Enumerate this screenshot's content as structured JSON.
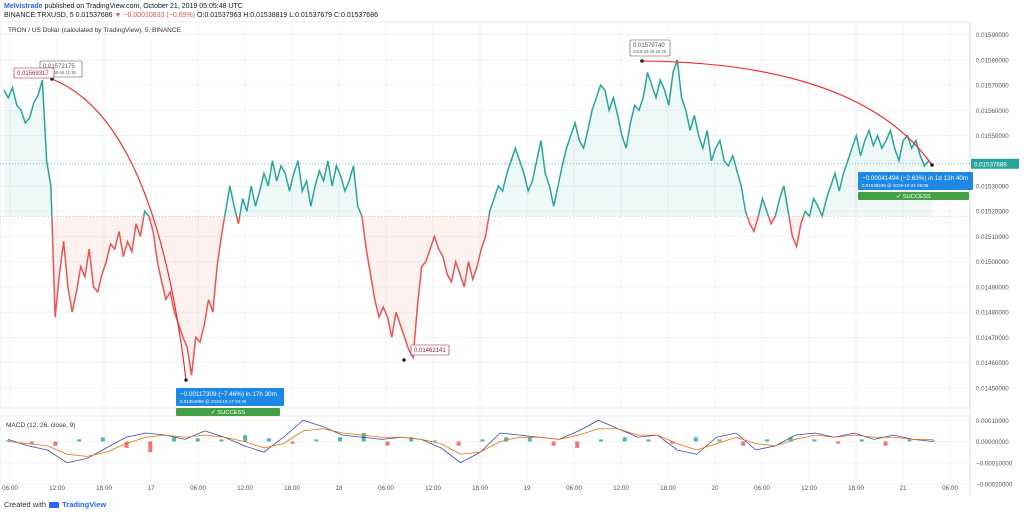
{
  "header": {
    "author": "Melvistrade",
    "published": "published on TradingView.com, October 21, 2019 05:05:48 UTC",
    "symbol_line_prefix": "BINANCE:TRXUSD, 5  0.01537686",
    "change": "−0.00010633 (−0.69%)",
    "ohlc": "O:0.01537963  H:0.01538819  L:0.01537679  C:0.01537686"
  },
  "footer": {
    "created_with": "Created with",
    "brand": "TradingView"
  },
  "colors": {
    "up": "#26a69a",
    "down": "#ef5350",
    "arc": "#ff1a1a",
    "callout": "#1e88e5",
    "success": "#43a047",
    "grid": "#eef0f3",
    "axis_text": "#555"
  },
  "chart_data": [
    {
      "type": "line",
      "title": "TRON / US Dollar (calculated by TradingView), 5, BINANCE",
      "ylim": [
        0.01442,
        0.01595
      ],
      "y_ticks": [
        "0.01590000",
        "0.01580000",
        "0.01570000",
        "0.01560000",
        "0.01550000",
        "0.01540000",
        "0.01530000",
        "0.01520000",
        "0.01510000",
        "0.01500000",
        "0.01490000",
        "0.01480000",
        "0.01470000",
        "0.01460000",
        "0.01450000"
      ],
      "x_ticks": [
        "06:00",
        "12:00",
        "18:00",
        "17",
        "06:00",
        "12:00",
        "18:00",
        "18",
        "06:00",
        "12:00",
        "18:00",
        "19",
        "06:00",
        "12:00",
        "18:00",
        "20",
        "06:00",
        "12:00",
        "18:00",
        "21",
        "06:00"
      ],
      "baseline": 0.01518,
      "reference": 0.015388,
      "series": [
        {
          "values": [
            0.01568,
            0.01565,
            0.01569,
            0.01562,
            0.0156,
            0.01555,
            0.01557,
            0.01563,
            0.01566,
            0.01572,
            0.0154,
            0.0153,
            0.01478,
            0.01495,
            0.01508,
            0.0149,
            0.0148,
            0.01488,
            0.01498,
            0.01494,
            0.01505,
            0.0149,
            0.01488,
            0.01495,
            0.015,
            0.01507,
            0.01505,
            0.01512,
            0.01502,
            0.01508,
            0.01504,
            0.01515,
            0.0151,
            0.0152,
            0.01518,
            0.01512,
            0.015,
            0.01492,
            0.01485,
            0.01488,
            0.0148,
            0.01475,
            0.0147,
            0.01466,
            0.01455,
            0.0147,
            0.01468,
            0.01475,
            0.01485,
            0.0148,
            0.01498,
            0.0151,
            0.0152,
            0.0153,
            0.01522,
            0.01515,
            0.01525,
            0.0152,
            0.0153,
            0.01522,
            0.01528,
            0.01535,
            0.0153,
            0.0154,
            0.01532,
            0.01538,
            0.01535,
            0.01528,
            0.01535,
            0.0154,
            0.01528,
            0.01532,
            0.01522,
            0.0153,
            0.01536,
            0.01532,
            0.0154,
            0.0153,
            0.01538,
            0.01534,
            0.01528,
            0.01532,
            0.01538,
            0.01522,
            0.01518,
            0.01505,
            0.01495,
            0.01485,
            0.01478,
            0.01482,
            0.01478,
            0.0147,
            0.0148,
            0.01475,
            0.0147,
            0.01465,
            0.01462,
            0.01482,
            0.01498,
            0.015,
            0.01505,
            0.0151,
            0.01505,
            0.01502,
            0.01495,
            0.01492,
            0.015,
            0.01495,
            0.0149,
            0.015,
            0.01493,
            0.01498,
            0.01505,
            0.0151,
            0.0152,
            0.01525,
            0.0153,
            0.01528,
            0.01535,
            0.0154,
            0.01545,
            0.0154,
            0.01535,
            0.01528,
            0.01532,
            0.0154,
            0.01548,
            0.01535,
            0.0153,
            0.01522,
            0.0153,
            0.01538,
            0.01545,
            0.0155,
            0.01555,
            0.01548,
            0.01545,
            0.01552,
            0.0156,
            0.01565,
            0.0157,
            0.01568,
            0.0156,
            0.01565,
            0.01558,
            0.0155,
            0.01545,
            0.01555,
            0.01562,
            0.0156,
            0.01565,
            0.01575,
            0.0157,
            0.01565,
            0.01572,
            0.01568,
            0.01562,
            0.01575,
            0.0158,
            0.01565,
            0.0156,
            0.01552,
            0.01558,
            0.0155,
            0.01545,
            0.01552,
            0.0154,
            0.01545,
            0.01548,
            0.0154,
            0.01538,
            0.01542,
            0.01536,
            0.0153,
            0.0152,
            0.01515,
            0.01512,
            0.01518,
            0.01525,
            0.0152,
            0.01515,
            0.01518,
            0.01525,
            0.0153,
            0.0152,
            0.0151,
            0.01506,
            0.01515,
            0.0152,
            0.01518,
            0.01525,
            0.01522,
            0.01518,
            0.01525,
            0.0153,
            0.01535,
            0.01528,
            0.01535,
            0.0154,
            0.01545,
            0.0155,
            0.01542,
            0.01548,
            0.01552,
            0.01546,
            0.0155,
            0.01545,
            0.01548,
            0.01552,
            0.01545,
            0.0154,
            0.01548,
            0.0155,
            0.01545,
            0.01548,
            0.01542,
            0.01538,
            0.0154,
            0.01538
          ]
        }
      ],
      "annotations": [
        {
          "label": "0.01569317"
        },
        {
          "label": "0.01572175"
        },
        {
          "label": "0.01579740"
        },
        {
          "label": "2019-10-19 15:25"
        },
        {
          "label": "0.01462141"
        }
      ],
      "measurements": [
        {
          "text": "−0.00117309 (−7.46%) in 17h 30m",
          "sub": "0.01454866 @ 2019-10-17  04:45",
          "badge": "✓ SUCCESS"
        },
        {
          "text": "−0.00041494 (−2.63%) in 1d 13h 40m",
          "sub": "0.01538246 @ 2019-10-21  05:05",
          "badge": "✓ SUCCESS"
        }
      ],
      "price_tag": "0.01537686"
    },
    {
      "type": "bar",
      "title": "MACD (12, 26, close, 9)",
      "ylim": [
        -0.0002,
        0.00012
      ],
      "y_ticks": [
        "0.00010000",
        "0.00000000",
        "−0.00010000",
        "−0.00020000"
      ],
      "series": [
        {
          "name": "histogram",
          "values": [
            5e-06,
            -1e-05,
            -2e-05,
            1e-05,
            2e-05,
            -3e-05,
            -5e-05,
            2e-05,
            1.5e-05,
            1e-05,
            3e-05,
            1.5e-05,
            -1e-05,
            1e-05,
            2e-05,
            4e-05,
            -2e-05,
            2e-05,
            5e-06,
            -2e-05,
            1e-05,
            2e-05,
            2e-05,
            -2e-05,
            -3e-05,
            1e-05,
            2e-05,
            1e-05,
            -1e-05,
            2e-05,
            1e-05,
            -2e-05,
            1e-05,
            2e-05,
            1e-05,
            -1e-05,
            1e-05,
            -2e-05,
            1e-05,
            5e-06
          ]
        },
        {
          "name": "macd",
          "values": [
            1e-05,
            -2e-05,
            -4e-05,
            -0.0001,
            -8e-05,
            -3e-05,
            2e-05,
            4e-05,
            3e-05,
            1e-05,
            5e-05,
            2e-05,
            -2e-05,
            -5e-05,
            2e-05,
            0.0001,
            7e-05,
            3e-05,
            2e-05,
            1e-05,
            2e-05,
            1e-05,
            -3e-05,
            -0.0001,
            -5e-05,
            4e-05,
            3e-05,
            2e-05,
            1e-05,
            5e-05,
            0.0001,
            6e-05,
            2e-05,
            3e-05,
            -4e-05,
            -6e-05,
            2e-05,
            4e-05,
            -4e-05,
            -2e-05,
            3e-05,
            4e-05,
            2e-05,
            4e-05,
            1e-05,
            3e-05,
            1e-05,
            0.0
          ]
        },
        {
          "name": "signal",
          "values": [
            0.0,
            -1e-05,
            -2e-05,
            -6e-05,
            -7e-05,
            -5e-05,
            -1e-05,
            2e-05,
            3e-05,
            2e-05,
            3e-05,
            2e-05,
            0.0,
            -3e-05,
            -1e-05,
            5e-05,
            6e-05,
            4e-05,
            3e-05,
            2e-05,
            2e-05,
            1e-05,
            -1e-05,
            -6e-05,
            -5e-05,
            0.0,
            2e-05,
            2e-05,
            1e-05,
            3e-05,
            6e-05,
            6e-05,
            3e-05,
            3e-05,
            -1e-05,
            -4e-05,
            -1e-05,
            2e-05,
            -1e-05,
            -2e-05,
            1e-05,
            3e-05,
            2e-05,
            3e-05,
            2e-05,
            2e-05,
            1e-05,
            1e-05
          ]
        }
      ]
    }
  ]
}
